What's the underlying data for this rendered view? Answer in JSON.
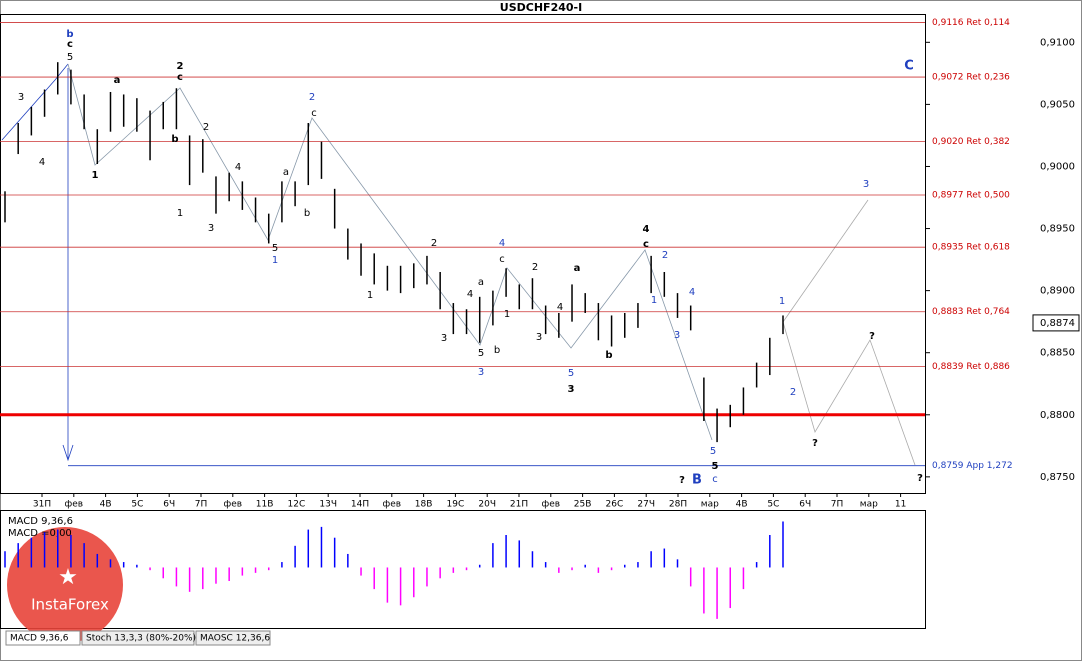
{
  "chart_data": {
    "type": "hl-bars",
    "title": "USDCHF240-I",
    "ylim": [
      0.8737,
      0.9122
    ],
    "yticks": [
      {
        "value": 0.91,
        "label": "0,9100"
      },
      {
        "value": 0.905,
        "label": "0,9050"
      },
      {
        "value": 0.9,
        "label": "0,9000"
      },
      {
        "value": 0.895,
        "label": "0,8950"
      },
      {
        "value": 0.89,
        "label": "0,8900"
      },
      {
        "value": 0.885,
        "label": "0,8850"
      },
      {
        "value": 0.88,
        "label": "0,8800"
      },
      {
        "value": 0.875,
        "label": "0,8750"
      }
    ],
    "xlabels": [
      "31П",
      "фев",
      "4В",
      "5С",
      "6Ч",
      "7П",
      "фев",
      "11В",
      "12С",
      "13Ч",
      "14П",
      "фев",
      "18В",
      "19С",
      "20Ч",
      "21П",
      "фев",
      "25В",
      "26С",
      "27Ч",
      "28П",
      "мар",
      "4В",
      "5С",
      "6Ч",
      "7П",
      "мар",
      "11"
    ],
    "color": "#000000",
    "high": [
      0.898,
      0.9035,
      0.9048,
      0.9062,
      0.9084,
      0.9078,
      0.9058,
      0.903,
      0.906,
      0.9058,
      0.9055,
      0.9045,
      0.9052,
      0.9063,
      0.9025,
      0.9022,
      0.8992,
      0.8995,
      0.8988,
      0.8975,
      0.8962,
      0.8988,
      0.8988,
      0.9035,
      0.902,
      0.8982,
      0.895,
      0.8938,
      0.893,
      0.892,
      0.892,
      0.8922,
      0.8928,
      0.8915,
      0.889,
      0.8885,
      0.8895,
      0.89,
      0.8918,
      0.8905,
      0.891,
      0.8888,
      0.8882,
      0.8905,
      0.8898,
      0.889,
      0.888,
      0.8882,
      0.889,
      0.8928,
      0.8915,
      0.8898,
      0.8888,
      0.883,
      0.8805,
      0.8808,
      0.8822,
      0.8842,
      0.8862,
      0.888
    ],
    "low": [
      0.8955,
      0.901,
      0.9025,
      0.904,
      0.9058,
      0.905,
      0.903,
      0.9002,
      0.9028,
      0.9032,
      0.9028,
      0.9005,
      0.903,
      0.903,
      0.8985,
      0.8995,
      0.8962,
      0.8972,
      0.8965,
      0.8955,
      0.8938,
      0.8955,
      0.8968,
      0.8985,
      0.899,
      0.895,
      0.8925,
      0.8912,
      0.8905,
      0.89,
      0.8898,
      0.8902,
      0.8905,
      0.8885,
      0.8865,
      0.8865,
      0.8858,
      0.8872,
      0.8895,
      0.8885,
      0.8885,
      0.8865,
      0.8862,
      0.8875,
      0.8882,
      0.886,
      0.8855,
      0.8862,
      0.887,
      0.8898,
      0.8895,
      0.8878,
      0.8868,
      0.8795,
      0.8778,
      0.879,
      0.88,
      0.8822,
      0.8832,
      0.8865
    ],
    "levels": [
      {
        "value": 0.9116,
        "label": "0,9116 Ret 0,114"
      },
      {
        "value": 0.9072,
        "label": "0,9072 Ret 0,236"
      },
      {
        "value": 0.902,
        "label": "0,9020 Ret 0,382"
      },
      {
        "value": 0.8977,
        "label": "0,8977 Ret 0,500"
      },
      {
        "value": 0.8935,
        "label": "0,8935 Ret 0,618"
      },
      {
        "value": 0.8883,
        "label": "0,8883 Ret 0,764"
      },
      {
        "value": 0.8839,
        "label": "0,8839 Ret 0,886"
      },
      {
        "value": 0.8759,
        "label": "0,8759 App 1,272"
      }
    ],
    "support_level": 0.88,
    "last_price": {
      "value": 0.8874,
      "label": "0,8874"
    },
    "annotations": [
      "b",
      "c",
      "5",
      "3",
      "4",
      "a",
      "1",
      "2",
      "c",
      "b",
      "2",
      "4",
      "3",
      "1",
      "5",
      "1",
      "a",
      "b",
      "2",
      "c",
      "2",
      "1",
      "3",
      "4",
      "a",
      "5",
      "3",
      "b",
      "4",
      "c",
      "1",
      "2",
      "3",
      "a",
      "4",
      "5",
      "3",
      "b",
      "4",
      "c",
      "2",
      "1",
      "4",
      "3",
      "5",
      "5",
      "c",
      "?",
      "B",
      "1",
      "2",
      "?",
      "?",
      "3",
      "?",
      "C"
    ],
    "macd": {
      "legend": [
        "MACD 9,36,6",
        "MACD =0,00"
      ],
      "ylim": [
        -0.0044,
        0.0041
      ],
      "values": [
        0.0012,
        0.0018,
        0.0022,
        0.0026,
        0.0028,
        0.0024,
        0.0018,
        0.001,
        0.0006,
        0.0004,
        0.0002,
        -0.0002,
        -0.0008,
        -0.0014,
        -0.0018,
        -0.0016,
        -0.0012,
        -0.001,
        -0.0006,
        -0.0004,
        -0.0002,
        0.0004,
        0.0016,
        0.0028,
        0.003,
        0.0022,
        0.001,
        -0.0006,
        -0.0016,
        -0.0026,
        -0.0028,
        -0.0022,
        -0.0014,
        -0.0008,
        -0.0004,
        -0.0002,
        0.0002,
        0.0018,
        0.0024,
        0.002,
        0.0012,
        0.0004,
        -0.0004,
        -0.0002,
        0.0002,
        -0.0004,
        -0.0002,
        0.0002,
        0.0004,
        0.0012,
        0.0014,
        0.0006,
        -0.0014,
        -0.0034,
        -0.0038,
        -0.003,
        -0.0016,
        0.0004,
        0.0024,
        0.0034
      ],
      "pos_color": "#0000ff",
      "neg_color": "#ff00ff"
    },
    "tabs": [
      "MACD 9,36,6",
      "Stoch 13,3,3 (80%-20%)",
      "MAOSC 12,36,6"
    ],
    "logo": "InstaForex"
  }
}
